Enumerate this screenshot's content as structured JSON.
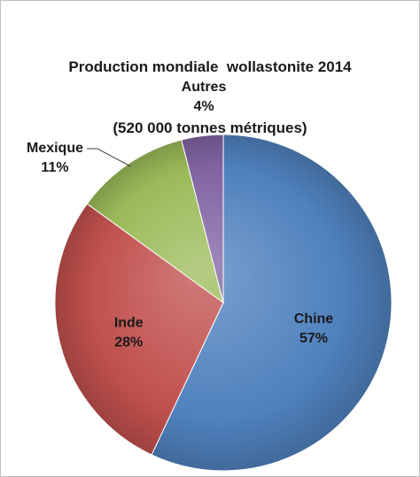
{
  "chart_data": {
    "type": "pie",
    "title_line1": "Production mondiale  wollastonite 2014",
    "title_line2": "(520 000 tonnes métriques)",
    "slices": [
      {
        "name": "Chine",
        "value": 57,
        "label": "57%",
        "color": "#4f81bd"
      },
      {
        "name": "Inde",
        "value": 28,
        "label": "28%",
        "color": "#c0504d"
      },
      {
        "name": "Mexique",
        "value": 11,
        "label": "11%",
        "color": "#9bbb59"
      },
      {
        "name": "Autres",
        "value": 4,
        "label": "4%",
        "color": "#8064a2"
      }
    ]
  }
}
